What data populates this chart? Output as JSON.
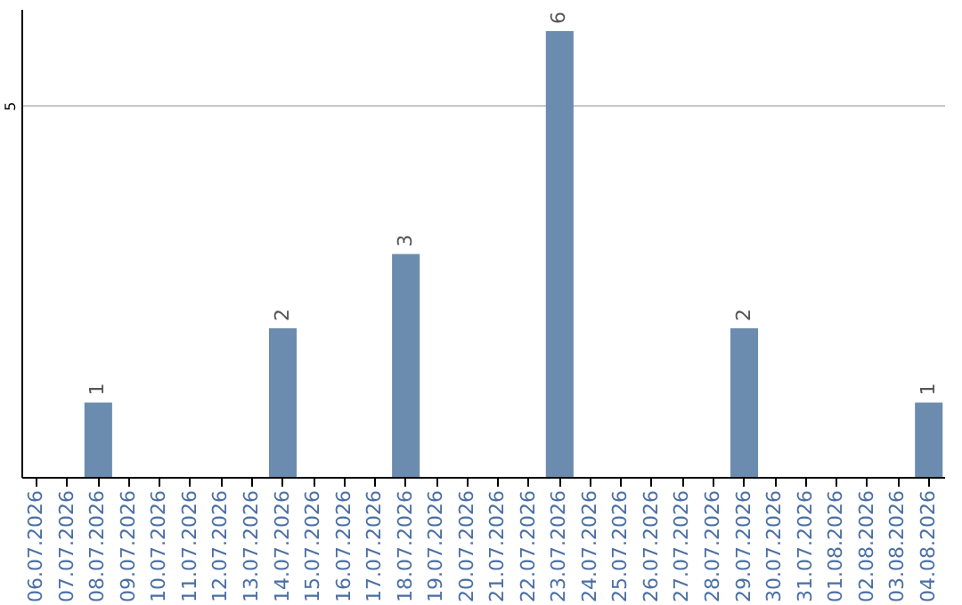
{
  "chart_data": {
    "type": "bar",
    "categories": [
      "06.07.2026",
      "07.07.2026",
      "08.07.2026",
      "09.07.2026",
      "10.07.2026",
      "11.07.2026",
      "12.07.2026",
      "13.07.2026",
      "14.07.2026",
      "15.07.2026",
      "16.07.2026",
      "17.07.2026",
      "18.07.2026",
      "19.07.2026",
      "20.07.2026",
      "21.07.2026",
      "22.07.2026",
      "23.07.2026",
      "24.07.2026",
      "25.07.2026",
      "26.07.2026",
      "27.07.2026",
      "28.07.2026",
      "29.07.2026",
      "30.07.2026",
      "31.07.2026",
      "01.08.2026",
      "02.08.2026",
      "03.08.2026",
      "04.08.2026"
    ],
    "values": [
      0,
      0,
      1,
      0,
      0,
      0,
      0,
      0,
      2,
      0,
      0,
      0,
      3,
      0,
      0,
      0,
      0,
      6,
      0,
      0,
      0,
      0,
      0,
      2,
      0,
      0,
      0,
      0,
      0,
      1
    ],
    "value_labels": [
      null,
      null,
      "1",
      null,
      null,
      null,
      null,
      null,
      "2",
      null,
      null,
      null,
      "3",
      null,
      null,
      null,
      null,
      "6",
      null,
      null,
      null,
      null,
      null,
      "2",
      null,
      null,
      null,
      null,
      null,
      "1"
    ],
    "color": "#6b8cae",
    "ylim": [
      0,
      6.3
    ],
    "yticks": [
      5
    ],
    "grid": "y"
  }
}
